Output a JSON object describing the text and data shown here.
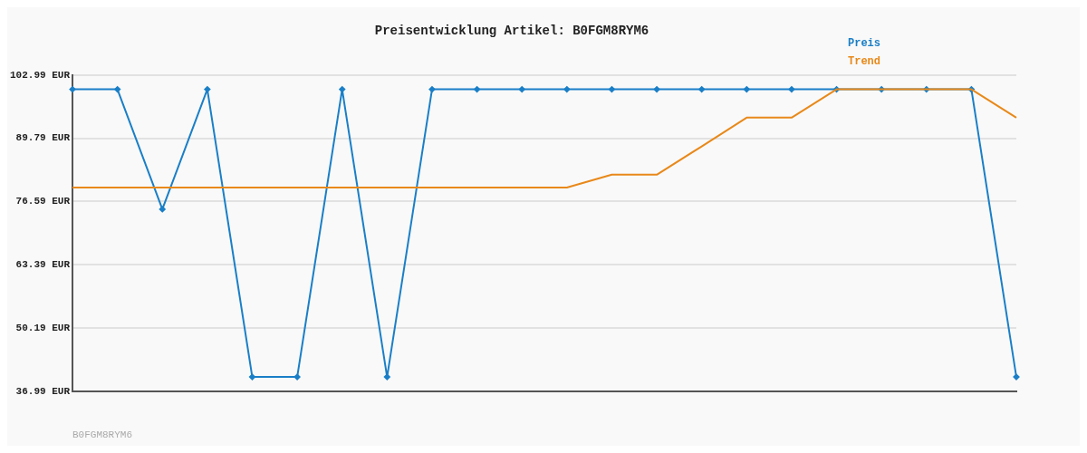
{
  "chart_data": {
    "type": "line",
    "title": "Preisentwicklung Artikel: B0FGM8RYM6",
    "categories": [
      null,
      null,
      null,
      null,
      null,
      null,
      null,
      null,
      null,
      null,
      null,
      null,
      null,
      null,
      null,
      null,
      null,
      null,
      null,
      null,
      null,
      null
    ],
    "series": [
      {
        "name": "Preis",
        "color": "#1a7fc7",
        "marker": "diamond",
        "values": [
          100,
          100,
          75,
          100,
          40,
          40,
          100,
          40,
          100,
          100,
          100,
          100,
          100,
          100,
          100,
          100,
          100,
          100,
          100,
          100,
          100,
          40
        ]
      },
      {
        "name": "Trend",
        "color": "#e8891a",
        "marker": "none",
        "values": [
          79.5,
          79.5,
          79.5,
          79.5,
          79.5,
          79.5,
          79.5,
          79.5,
          79.5,
          79.5,
          79.5,
          79.5,
          82.2,
          82.2,
          88.1,
          94.1,
          94.1,
          100,
          100,
          100,
          100,
          94.1
        ]
      }
    ],
    "ylim": [
      36.99,
      102.99
    ],
    "yticks": [
      {
        "value": 36.99,
        "label": "36.99 EUR"
      },
      {
        "value": 50.19,
        "label": "50.19 EUR"
      },
      {
        "value": 63.39,
        "label": "63.39 EUR"
      },
      {
        "value": 76.59,
        "label": "76.59 EUR"
      },
      {
        "value": 89.79,
        "label": "89.79 EUR"
      },
      {
        "value": 102.99,
        "label": "102.99 EUR"
      }
    ],
    "grid": "y",
    "legend": "top right",
    "tick_labels": "y",
    "annotations": [
      "B0FGM8RYM6"
    ]
  }
}
